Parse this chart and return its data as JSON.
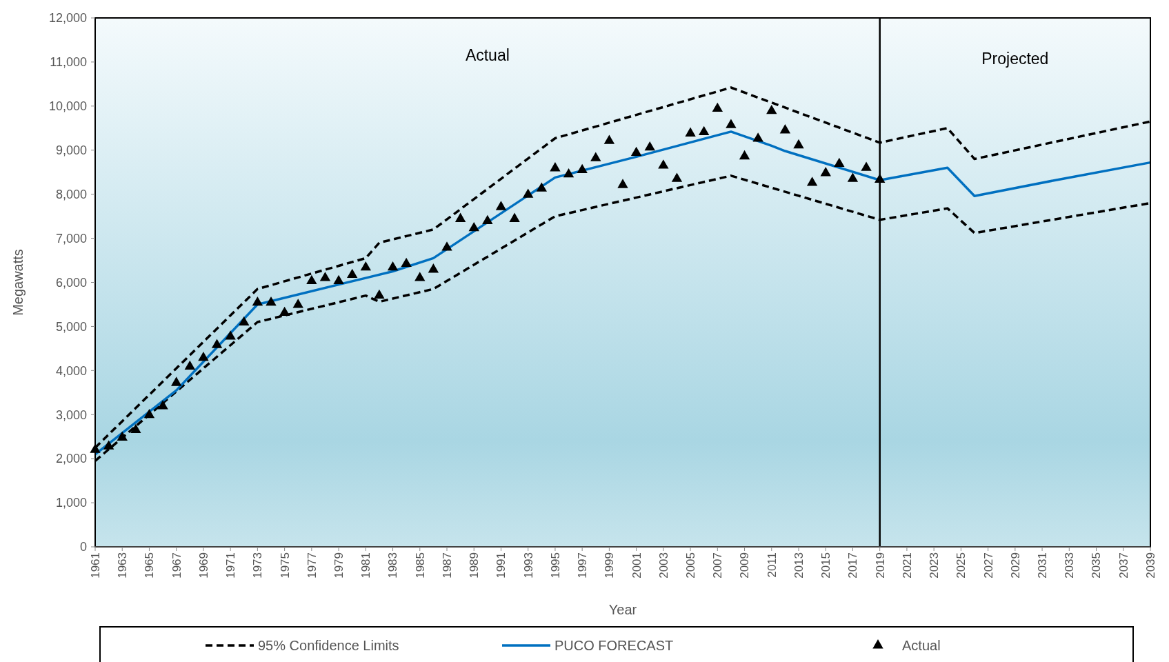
{
  "chart_data": {
    "type": "line",
    "xlabel": "Year",
    "ylabel": "Megawatts",
    "xlim": [
      1961,
      2039
    ],
    "xticks": [
      1961,
      1963,
      1965,
      1967,
      1969,
      1971,
      1973,
      1975,
      1977,
      1979,
      1981,
      1983,
      1985,
      1987,
      1989,
      1991,
      1993,
      1995,
      1997,
      1999,
      2001,
      2003,
      2005,
      2007,
      2009,
      2011,
      2013,
      2015,
      2017,
      2019,
      2021,
      2023,
      2025,
      2027,
      2029,
      2031,
      2033,
      2035,
      2037,
      2039
    ],
    "ylim": [
      0,
      12000
    ],
    "yticks": [
      {
        "value": 0,
        "label": "0"
      },
      {
        "value": 1000,
        "label": "1,000"
      },
      {
        "value": 2000,
        "label": "2,000"
      },
      {
        "value": 3000,
        "label": "3,000"
      },
      {
        "value": 4000,
        "label": "4,000"
      },
      {
        "value": 5000,
        "label": "5,000"
      },
      {
        "value": 6000,
        "label": "6,000"
      },
      {
        "value": 7000,
        "label": "7,000"
      },
      {
        "value": 8000,
        "label": "8,000"
      },
      {
        "value": 9000,
        "label": "9,000"
      },
      {
        "value": 10000,
        "label": "10,000"
      },
      {
        "value": 11000,
        "label": "11,000"
      },
      {
        "value": 12000,
        "label": "12,000"
      }
    ],
    "grid": false,
    "legend": "bottom",
    "ref_lines": [
      {
        "axis": "x",
        "value": 2019,
        "color": "#000000"
      }
    ],
    "annotations": [
      "Actual",
      "Projected"
    ],
    "series": [
      {
        "name": "95% Confidence Limits",
        "line_style": "dashed",
        "color": "#000000",
        "x": [
          1961,
          1973,
          1981,
          1982,
          1986,
          1995,
          2008,
          2019,
          2024,
          2026,
          2039
        ],
        "values": [
          2250,
          5850,
          6550,
          6900,
          7200,
          9270,
          10420,
          9170,
          9500,
          8800,
          9650
        ]
      },
      {
        "line_style": "dashed",
        "color": "#000000",
        "x": [
          1961,
          1973,
          1981,
          1982,
          1986,
          1995,
          2008,
          2019,
          2024,
          2026,
          2039
        ],
        "values": [
          1950,
          5100,
          5700,
          5560,
          5850,
          7500,
          8420,
          7420,
          7680,
          7120,
          7800
        ]
      },
      {
        "name": "PUCO FORECAST",
        "line_style": "solid",
        "color": "#0070c0",
        "x": [
          1961,
          1967,
          1973,
          1981,
          1983,
          1986,
          1995,
          2001,
          2008,
          2011,
          2012,
          2019,
          2024,
          2026,
          2032,
          2039
        ],
        "values": [
          2100,
          3550,
          5500,
          6100,
          6250,
          6550,
          8380,
          8850,
          9420,
          9100,
          8980,
          8320,
          8600,
          7960,
          8320,
          8720
        ]
      },
      {
        "name": "Actual",
        "type": "scatter",
        "marker": "triangle",
        "color": "#000000",
        "x": [
          1961,
          1962,
          1963,
          1964,
          1965,
          1966,
          1967,
          1968,
          1969,
          1970,
          1971,
          1972,
          1973,
          1974,
          1975,
          1976,
          1977,
          1978,
          1979,
          1980,
          1981,
          1982,
          1983,
          1984,
          1985,
          1986,
          1987,
          1988,
          1989,
          1990,
          1991,
          1992,
          1993,
          1994,
          1995,
          1996,
          1997,
          1998,
          1999,
          2000,
          2001,
          2002,
          2003,
          2004,
          2005,
          2006,
          2007,
          2008,
          2009,
          2010,
          2011,
          2012,
          2013,
          2014,
          2015,
          2016,
          2017,
          2018,
          2019
        ],
        "values": [
          2200,
          2280,
          2480,
          2650,
          2990,
          3190,
          3720,
          4090,
          4290,
          4580,
          4770,
          5090,
          5540,
          5540,
          5310,
          5490,
          6030,
          6100,
          6030,
          6170,
          6340,
          5700,
          6340,
          6420,
          6100,
          6290,
          6790,
          7440,
          7230,
          7390,
          7710,
          7440,
          7990,
          8130,
          8590,
          8450,
          8550,
          8820,
          9210,
          8210,
          8940,
          9060,
          8650,
          8350,
          9380,
          9410,
          9940,
          9570,
          8860,
          9260,
          9890,
          9450,
          9110,
          8260,
          8480,
          8690,
          8350,
          8600,
          8330
        ]
      }
    ]
  }
}
